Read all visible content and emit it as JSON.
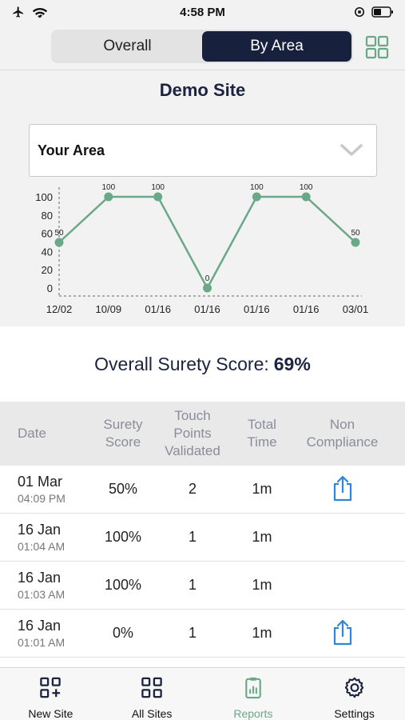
{
  "status_bar": {
    "time": "4:58 PM"
  },
  "view_toggle": {
    "options": [
      "Overall",
      "By Area"
    ],
    "selected": "By Area"
  },
  "site": {
    "title": "Demo Site"
  },
  "area_select": {
    "value": "Your Area"
  },
  "chart_data": {
    "type": "line",
    "categories": [
      "12/02",
      "10/09",
      "01/16",
      "01/16",
      "01/16",
      "01/16",
      "03/01"
    ],
    "values": [
      50,
      100,
      100,
      0,
      100,
      100,
      50
    ],
    "data_labels": [
      "50",
      "100",
      "100",
      "0",
      "100",
      "100",
      "50"
    ],
    "y_ticks": [
      "100",
      "80",
      "60",
      "40",
      "20",
      "0"
    ],
    "ylim": [
      0,
      100
    ],
    "line_color": "#6aa888",
    "grid": false,
    "title": "",
    "xlabel": "",
    "ylabel": ""
  },
  "overall": {
    "label": "Overall Surety Score:",
    "value": "69%"
  },
  "table": {
    "headers": {
      "date": "Date",
      "score_1": "Surety",
      "score_2": "Score",
      "tp_1": "Touch",
      "tp_2": "Points",
      "tp_3": "Validated",
      "time_1": "Total",
      "time_2": "Time",
      "nc_1": "Non",
      "nc_2": "Compliance"
    },
    "rows": [
      {
        "date": "01 Mar",
        "time": "04:09 PM",
        "score": "50%",
        "touch_points": "2",
        "total_time": "1m"
      },
      {
        "date": "16 Jan",
        "time": "01:04 AM",
        "score": "100%",
        "touch_points": "1",
        "total_time": "1m"
      },
      {
        "date": "16 Jan",
        "time": "01:03 AM",
        "score": "100%",
        "touch_points": "1",
        "total_time": "1m"
      },
      {
        "date": "16 Jan",
        "time": "01:01 AM",
        "score": "0%",
        "touch_points": "1",
        "total_time": "1m"
      }
    ],
    "share_icon_color": "#2f86d6"
  },
  "tab_bar": {
    "items": [
      {
        "label": "New Site",
        "icon": "grid-plus-icon"
      },
      {
        "label": "All Sites",
        "icon": "grid-icon"
      },
      {
        "label": "Reports",
        "icon": "clipboard-icon"
      },
      {
        "label": "Settings",
        "icon": "gear-icon"
      }
    ],
    "active": "Reports",
    "accent": "#6aa888"
  }
}
